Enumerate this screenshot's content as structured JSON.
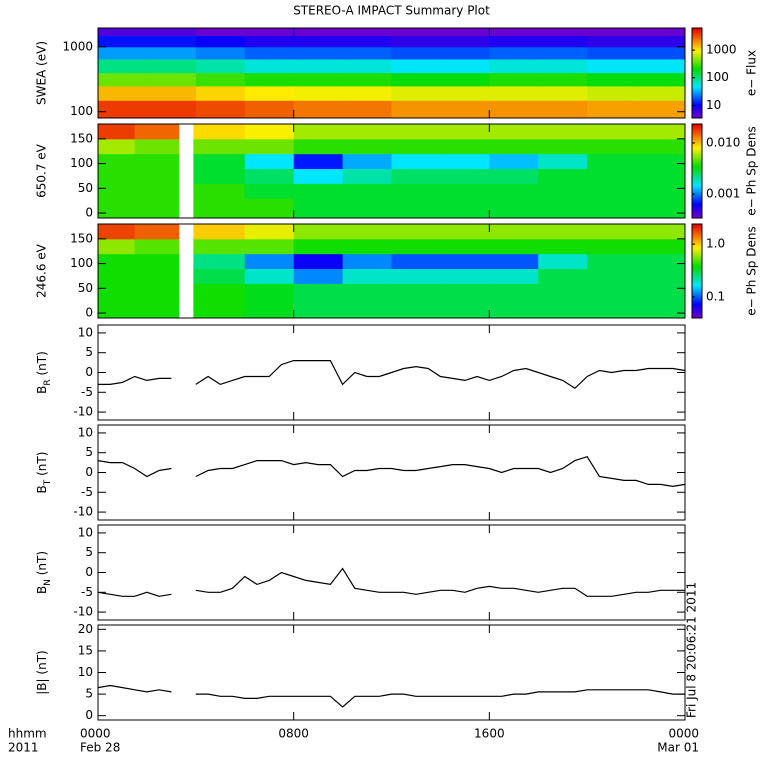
{
  "chart_data": [
    {
      "type": "heatmap",
      "title": "STEREO-A IMPACT Summary Plot",
      "ylabel": "SWEA (eV)",
      "yscale": "log",
      "xlim": [
        0,
        24
      ],
      "ylim": [
        80,
        1950
      ],
      "yticks": [
        100,
        1000
      ],
      "x_edges": [
        0,
        2,
        4,
        6,
        8,
        10,
        12,
        14,
        16,
        18,
        20,
        22,
        24
      ],
      "y_edges": [
        80,
        150,
        250,
        400,
        650,
        1000,
        1500,
        1950
      ],
      "values": [
        [
          4000,
          4000,
          3500,
          3000,
          2500,
          2500,
          2000,
          2000,
          2000,
          2000,
          1800,
          1800
        ],
        [
          1500,
          1500,
          1200,
          1000,
          900,
          900,
          800,
          800,
          800,
          800,
          700,
          700
        ],
        [
          400,
          400,
          300,
          250,
          250,
          250,
          200,
          200,
          250,
          250,
          200,
          200
        ],
        [
          100,
          100,
          80,
          60,
          60,
          60,
          50,
          50,
          60,
          60,
          50,
          50
        ],
        [
          30,
          30,
          25,
          20,
          20,
          20,
          18,
          18,
          20,
          20,
          18,
          18
        ],
        [
          12,
          12,
          10,
          8,
          8,
          8,
          7,
          7,
          8,
          8,
          7,
          7
        ],
        [
          5,
          5,
          4,
          4,
          4,
          4,
          4,
          4,
          4,
          4,
          4,
          4
        ]
      ],
      "colorbar": {
        "label": "e− Flux",
        "scale": "log",
        "clim": [
          3.5,
          6300
        ],
        "ticks": [
          10,
          100,
          1000
        ]
      }
    },
    {
      "type": "heatmap",
      "ylabel": "650.7 eV",
      "yscale": "linear",
      "xlim": [
        0,
        24
      ],
      "ylim": [
        -10,
        180
      ],
      "yticks": [
        0,
        50,
        100,
        150
      ],
      "x_edges": [
        0,
        1.5,
        3.3,
        3.9,
        6,
        8,
        10,
        12,
        14,
        16,
        18,
        20,
        22,
        24
      ],
      "y_edges": [
        -10,
        30,
        60,
        90,
        120,
        150,
        180
      ],
      "values": [
        [
          0.004,
          0.004,
          null,
          0.004,
          0.004,
          0.003,
          0.003,
          0.003,
          0.003,
          0.003,
          0.003,
          0.003,
          0.003
        ],
        [
          0.004,
          0.004,
          null,
          0.004,
          0.003,
          0.003,
          0.003,
          0.003,
          0.003,
          0.003,
          0.003,
          0.003,
          0.003
        ],
        [
          0.004,
          0.004,
          null,
          0.003,
          0.0025,
          0.0015,
          0.002,
          0.0025,
          0.0025,
          0.0025,
          0.003,
          0.003,
          0.003
        ],
        [
          0.004,
          0.004,
          null,
          0.003,
          0.0015,
          0.0007,
          0.0012,
          0.0015,
          0.0015,
          0.0013,
          0.0018,
          0.003,
          0.003
        ],
        [
          0.006,
          0.005,
          null,
          0.005,
          0.005,
          0.004,
          0.004,
          0.004,
          0.004,
          0.004,
          0.004,
          0.004,
          0.004
        ],
        [
          0.018,
          0.015,
          null,
          0.009,
          0.008,
          0.006,
          0.006,
          0.006,
          0.006,
          0.006,
          0.006,
          0.006,
          0.006
        ]
      ],
      "colorbar": {
        "label": "e− Ph Sp Dens",
        "scale": "log",
        "clim": [
          0.00034,
          0.0235
        ],
        "ticks": [
          0.001,
          {
            "value": 0.01,
            "label": "0.010"
          }
        ]
      }
    },
    {
      "type": "heatmap",
      "ylabel": "246.6 eV",
      "yscale": "linear",
      "xlim": [
        0,
        24
      ],
      "ylim": [
        -10,
        180
      ],
      "yticks": [
        0,
        50,
        100,
        150
      ],
      "x_edges": [
        0,
        1.5,
        3.3,
        3.9,
        6,
        8,
        10,
        12,
        14,
        16,
        18,
        20,
        22,
        24
      ],
      "y_edges": [
        -10,
        30,
        60,
        90,
        120,
        150,
        180
      ],
      "values": [
        [
          0.4,
          0.4,
          null,
          0.4,
          0.35,
          0.3,
          0.3,
          0.3,
          0.3,
          0.3,
          0.3,
          0.3,
          0.3
        ],
        [
          0.4,
          0.4,
          null,
          0.4,
          0.35,
          0.3,
          0.3,
          0.3,
          0.3,
          0.3,
          0.3,
          0.3,
          0.3
        ],
        [
          0.4,
          0.4,
          null,
          0.3,
          0.2,
          0.12,
          0.2,
          0.2,
          0.2,
          0.2,
          0.3,
          0.3,
          0.3
        ],
        [
          0.4,
          0.4,
          null,
          0.25,
          0.12,
          0.07,
          0.12,
          0.1,
          0.1,
          0.1,
          0.2,
          0.3,
          0.3
        ],
        [
          0.6,
          0.5,
          null,
          0.5,
          0.5,
          0.4,
          0.4,
          0.4,
          0.4,
          0.4,
          0.4,
          0.4,
          0.4
        ],
        [
          1.8,
          1.6,
          null,
          1.0,
          0.8,
          0.6,
          0.6,
          0.6,
          0.6,
          0.6,
          0.6,
          0.6,
          0.6
        ]
      ],
      "colorbar": {
        "label": "e− Ph Sp Dens",
        "scale": "log",
        "clim": [
          0.04,
          2.4
        ],
        "ticks": [
          0.1,
          {
            "value": 1,
            "label": "1.0"
          }
        ]
      }
    },
    {
      "type": "line",
      "ylabel_parts": [
        "B",
        "R",
        " (nT)"
      ],
      "color": "#000000",
      "xlim": [
        0,
        24
      ],
      "ylim": [
        -12,
        12
      ],
      "yticks": [
        -10,
        -5,
        0,
        5,
        10
      ],
      "x": [
        0,
        0.5,
        1,
        1.5,
        2,
        2.5,
        3,
        3.5,
        4,
        4.5,
        5,
        5.5,
        6,
        6.5,
        7,
        7.5,
        8,
        8.5,
        9,
        9.5,
        10,
        10.5,
        11,
        11.5,
        12,
        12.5,
        13,
        13.5,
        14,
        14.5,
        15,
        15.5,
        16,
        16.5,
        17,
        17.5,
        18,
        18.5,
        19,
        19.5,
        20,
        20.5,
        21,
        21.5,
        22,
        22.5,
        23,
        23.5,
        24
      ],
      "values": [
        -3,
        -3,
        -2.5,
        -1,
        -2,
        -1.5,
        -1.5,
        null,
        -3,
        -1,
        -3,
        -2,
        -1,
        -1,
        -1,
        2,
        3,
        3,
        3,
        3,
        -3,
        0,
        -1,
        -1,
        0,
        1,
        1.5,
        1,
        -1,
        -1.5,
        -2,
        -1,
        -2,
        -1,
        0.5,
        1,
        0,
        -1,
        -2,
        -4,
        -1,
        0.5,
        0,
        0.5,
        0.5,
        1,
        1,
        1,
        0.5
      ]
    },
    {
      "type": "line",
      "ylabel_parts": [
        "B",
        "T",
        " (nT)"
      ],
      "color": "#000000",
      "xlim": [
        0,
        24
      ],
      "ylim": [
        -12,
        12
      ],
      "yticks": [
        -10,
        -5,
        0,
        5,
        10
      ],
      "x": [
        0,
        0.5,
        1,
        1.5,
        2,
        2.5,
        3,
        3.5,
        4,
        4.5,
        5,
        5.5,
        6,
        6.5,
        7,
        7.5,
        8,
        8.5,
        9,
        9.5,
        10,
        10.5,
        11,
        11.5,
        12,
        12.5,
        13,
        13.5,
        14,
        14.5,
        15,
        15.5,
        16,
        16.5,
        17,
        17.5,
        18,
        18.5,
        19,
        19.5,
        20,
        20.5,
        21,
        21.5,
        22,
        22.5,
        23,
        23.5,
        24
      ],
      "values": [
        3,
        2.5,
        2.5,
        1,
        -1,
        0.5,
        1,
        null,
        -1,
        0.5,
        1,
        1,
        2,
        3,
        3,
        3,
        2,
        2.5,
        2,
        2,
        -1,
        0.5,
        0.5,
        1,
        1,
        0.5,
        0.5,
        1,
        1.5,
        2,
        2,
        1.5,
        1,
        0,
        1,
        1,
        1,
        0,
        1,
        3,
        4,
        -1,
        -1.5,
        -2,
        -2,
        -3,
        -3,
        -3.5,
        -3
      ]
    },
    {
      "type": "line",
      "ylabel_parts": [
        "B",
        "N",
        " (nT)"
      ],
      "color": "#000000",
      "xlim": [
        0,
        24
      ],
      "ylim": [
        -12,
        12
      ],
      "yticks": [
        -10,
        -5,
        0,
        5,
        10
      ],
      "x": [
        0,
        0.5,
        1,
        1.5,
        2,
        2.5,
        3,
        3.5,
        4,
        4.5,
        5,
        5.5,
        6,
        6.5,
        7,
        7.5,
        8,
        8.5,
        9,
        9.5,
        10,
        10.5,
        11,
        11.5,
        12,
        12.5,
        13,
        13.5,
        14,
        14.5,
        15,
        15.5,
        16,
        16.5,
        17,
        17.5,
        18,
        18.5,
        19,
        19.5,
        20,
        20.5,
        21,
        21.5,
        22,
        22.5,
        23,
        23.5,
        24
      ],
      "values": [
        -5,
        -5.5,
        -6,
        -6,
        -5,
        -6,
        -5.5,
        null,
        -4.5,
        -5,
        -5,
        -4,
        -1,
        -3,
        -2,
        0,
        -1,
        -2,
        -2.5,
        -3,
        1,
        -4,
        -4.5,
        -5,
        -5,
        -5,
        -5.5,
        -5,
        -4.5,
        -4.5,
        -5,
        -4,
        -3.5,
        -4,
        -4,
        -4.5,
        -5,
        -4.5,
        -4,
        -4,
        -6,
        -6,
        -6,
        -5.5,
        -5,
        -5,
        -4.5,
        -4.5,
        -4.5
      ]
    },
    {
      "type": "line",
      "ylabel_parts": [
        "|B|",
        "",
        " (nT)"
      ],
      "color": "#000000",
      "xlim": [
        0,
        24
      ],
      "ylim": [
        -1,
        21
      ],
      "yticks": [
        0,
        5,
        10,
        15,
        20
      ],
      "x": [
        0,
        0.5,
        1,
        1.5,
        2,
        2.5,
        3,
        3.5,
        4,
        4.5,
        5,
        5.5,
        6,
        6.5,
        7,
        7.5,
        8,
        8.5,
        9,
        9.5,
        10,
        10.5,
        11,
        11.5,
        12,
        12.5,
        13,
        13.5,
        14,
        14.5,
        15,
        15.5,
        16,
        16.5,
        17,
        17.5,
        18,
        18.5,
        19,
        19.5,
        20,
        20.5,
        21,
        21.5,
        22,
        22.5,
        23,
        23.5,
        24
      ],
      "values": [
        6.5,
        7,
        6.5,
        6,
        5.5,
        6,
        5.5,
        null,
        5,
        5,
        4.5,
        4.5,
        4,
        4,
        4.5,
        4.5,
        4.5,
        4.5,
        4.5,
        4.5,
        2,
        4.5,
        4.5,
        4.5,
        5,
        5,
        4.5,
        4.5,
        4.5,
        4.5,
        4.5,
        4.5,
        4.5,
        4.5,
        5,
        5,
        5.5,
        5.5,
        5.5,
        5.5,
        6,
        6,
        6,
        6,
        6,
        6,
        5.5,
        5,
        5
      ],
      "xticks": [
        {
          "value": 0,
          "label": "0000"
        },
        {
          "value": 8,
          "label": "0800"
        },
        {
          "value": 16,
          "label": "1600"
        },
        {
          "value": 24,
          "label": "0000"
        }
      ],
      "date_labels": [
        {
          "value": 0,
          "label": "Feb 28"
        },
        {
          "value": 24,
          "label": "Mar 01"
        }
      ],
      "xlabel": "hhmm",
      "year": "2011",
      "timestamp": "Fri Jul  8 20:06:21 2011"
    }
  ]
}
